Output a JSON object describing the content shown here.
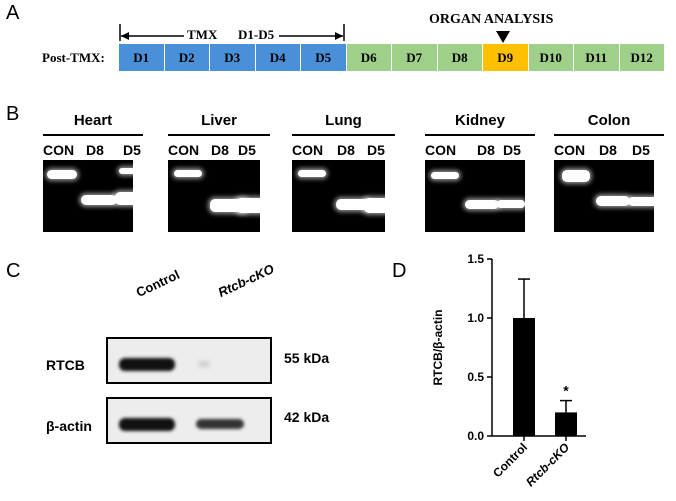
{
  "panels": {
    "a": "A",
    "b": "B",
    "c": "C",
    "d": "D"
  },
  "timeline": {
    "row_label": "Post-TMX:",
    "tmx_label": "TMX",
    "range_label": "D1-D5",
    "organ_label": "ORGAN ANALYSIS",
    "days": [
      {
        "label": "D1",
        "color": "#4a90d9"
      },
      {
        "label": "D2",
        "color": "#4a90d9"
      },
      {
        "label": "D3",
        "color": "#4a90d9"
      },
      {
        "label": "D4",
        "color": "#4a90d9"
      },
      {
        "label": "D5",
        "color": "#4a90d9"
      },
      {
        "label": "D6",
        "color": "#9fd08a"
      },
      {
        "label": "D7",
        "color": "#9fd08a"
      },
      {
        "label": "D8",
        "color": "#9fd08a"
      },
      {
        "label": "D9",
        "color": "#ffc000"
      },
      {
        "label": "D10",
        "color": "#9fd08a"
      },
      {
        "label": "D11",
        "color": "#9fd08a"
      },
      {
        "label": "D12",
        "color": "#9fd08a"
      }
    ]
  },
  "gels": [
    {
      "title": "Heart",
      "lanes": [
        "CON",
        "D8",
        "D5"
      ]
    },
    {
      "title": "Liver",
      "lanes": [
        "CON",
        "D8",
        "D5"
      ]
    },
    {
      "title": "Lung",
      "lanes": [
        "CON",
        "D8",
        "D5"
      ]
    },
    {
      "title": "Kidney",
      "lanes": [
        "CON",
        "D8",
        "D5"
      ]
    },
    {
      "title": "Colon",
      "lanes": [
        "CON",
        "D8",
        "D5"
      ]
    }
  ],
  "western": {
    "lane_labels": [
      "Control",
      "Rtcb-cKO"
    ],
    "rows": [
      {
        "protein": "RTCB",
        "size": "55 kDa"
      },
      {
        "protein": "β-actin",
        "size": "42 kDa"
      }
    ]
  },
  "chart_data": {
    "type": "bar",
    "categories": [
      "Control",
      "Rtcb-cKO"
    ],
    "values": [
      1.0,
      0.2
    ],
    "errors": [
      0.33,
      0.1
    ],
    "ylabel": "RTCB/β-actin",
    "ylim": [
      0,
      1.5
    ],
    "yticks": [
      "0.0",
      "0.5",
      "1.0",
      "1.5"
    ],
    "annotations": [
      "*"
    ],
    "colors": {
      "bar": "#000000"
    }
  }
}
